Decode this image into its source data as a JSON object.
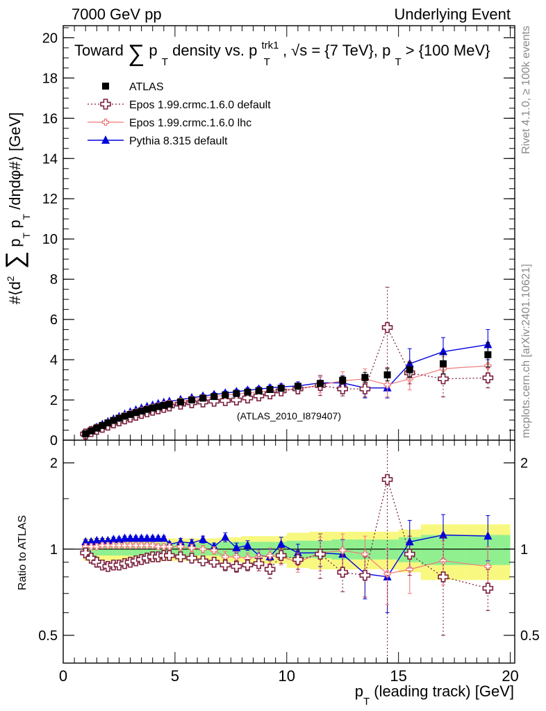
{
  "header": {
    "energy_label": "7000 GeV pp",
    "process_label": "Underlying Event"
  },
  "side_labels": {
    "rivet": "Rivet 4.1.0, ≥ 100k events",
    "mcplots": "mcplots.cern.ch [arXiv:2401.10621]"
  },
  "chart_data": [
    {
      "type": "scatter",
      "panel": "main",
      "title": "Toward ∑ pT density vs. pT^trk1, √s = {7 TeV}, pT > {100 MeV}",
      "ylabel": "#⟨d² ∑ pT pT /dηdφ#⟩ [GeV]",
      "xlabel": "pT (leading track) [GeV]",
      "xlim": [
        0,
        20.2
      ],
      "ylim": [
        0,
        20.6
      ],
      "xticks": [
        0,
        5,
        10,
        15,
        20
      ],
      "yticks": [
        0,
        2,
        4,
        6,
        8,
        10,
        12,
        14,
        16,
        18,
        20
      ],
      "watermark": "(ATLAS_2010_I879407)",
      "legend_position": "top-left",
      "x": [
        1.0,
        1.25,
        1.5,
        1.75,
        2.0,
        2.25,
        2.5,
        2.75,
        3.0,
        3.25,
        3.5,
        3.75,
        4.0,
        4.25,
        4.5,
        4.75,
        5.25,
        5.75,
        6.25,
        6.75,
        7.25,
        7.75,
        8.25,
        8.75,
        9.25,
        9.75,
        10.5,
        11.5,
        12.5,
        13.5,
        14.5,
        15.5,
        17.0,
        19.0
      ],
      "series": [
        {
          "name": "ATLAS",
          "marker": "square",
          "color": "#000000",
          "values": [
            0.32,
            0.46,
            0.6,
            0.73,
            0.86,
            0.98,
            1.09,
            1.19,
            1.28,
            1.37,
            1.45,
            1.53,
            1.6,
            1.67,
            1.73,
            1.79,
            1.9,
            2.0,
            2.09,
            2.17,
            2.25,
            2.32,
            2.39,
            2.46,
            2.52,
            2.58,
            2.68,
            2.82,
            2.98,
            3.12,
            3.25,
            3.5,
            3.8,
            4.25
          ],
          "errors": [
            0.02,
            0.02,
            0.02,
            0.02,
            0.02,
            0.03,
            0.03,
            0.03,
            0.03,
            0.03,
            0.03,
            0.03,
            0.03,
            0.04,
            0.04,
            0.04,
            0.05,
            0.05,
            0.05,
            0.06,
            0.06,
            0.07,
            0.07,
            0.08,
            0.08,
            0.09,
            0.1,
            0.15,
            0.2,
            0.25,
            0.3,
            0.35,
            0.5,
            0.6
          ]
        },
        {
          "name": "Epos 1.99.crmc.1.6.0 default",
          "marker": "open-cross",
          "color": "#7a1f3d",
          "values": [
            0.31,
            0.43,
            0.54,
            0.64,
            0.75,
            0.86,
            0.96,
            1.06,
            1.15,
            1.24,
            1.33,
            1.41,
            1.49,
            1.56,
            1.63,
            1.7,
            1.79,
            1.86,
            1.9,
            1.94,
            1.97,
            2.0,
            2.1,
            2.2,
            2.3,
            2.45,
            2.55,
            2.72,
            2.55,
            2.55,
            5.6,
            3.35,
            3.05,
            3.1
          ],
          "errors": [
            0.02,
            0.02,
            0.02,
            0.02,
            0.03,
            0.03,
            0.03,
            0.03,
            0.03,
            0.04,
            0.04,
            0.04,
            0.04,
            0.05,
            0.05,
            0.05,
            0.06,
            0.07,
            0.08,
            0.09,
            0.1,
            0.12,
            0.14,
            0.16,
            0.18,
            0.2,
            0.25,
            0.5,
            0.35,
            0.4,
            2.0,
            0.55,
            0.9,
            0.5
          ]
        },
        {
          "name": "Epos 1.99.crmc.1.6.0 lhc",
          "marker": "open-plus",
          "color": "#f07878",
          "values": [
            0.33,
            0.47,
            0.61,
            0.74,
            0.87,
            0.99,
            1.11,
            1.22,
            1.31,
            1.4,
            1.48,
            1.56,
            1.63,
            1.7,
            1.77,
            1.83,
            1.93,
            2.02,
            2.1,
            2.17,
            2.24,
            2.3,
            2.35,
            2.4,
            2.45,
            2.5,
            2.55,
            2.75,
            2.95,
            3.05,
            2.75,
            3.05,
            3.55,
            3.7
          ],
          "errors": [
            0.02,
            0.02,
            0.02,
            0.02,
            0.03,
            0.03,
            0.03,
            0.03,
            0.03,
            0.04,
            0.04,
            0.04,
            0.04,
            0.05,
            0.05,
            0.05,
            0.06,
            0.07,
            0.08,
            0.09,
            0.1,
            0.12,
            0.14,
            0.16,
            0.18,
            0.2,
            0.22,
            0.4,
            0.45,
            0.5,
            0.6,
            0.55,
            0.6,
            0.6
          ]
        },
        {
          "name": "Pythia 8.315 default",
          "marker": "triangle",
          "color": "#0000dd",
          "values": [
            0.34,
            0.49,
            0.64,
            0.78,
            0.92,
            1.05,
            1.17,
            1.29,
            1.4,
            1.5,
            1.59,
            1.67,
            1.74,
            1.81,
            1.87,
            1.93,
            2.02,
            2.11,
            2.19,
            2.27,
            2.34,
            2.41,
            2.48,
            2.54,
            2.6,
            2.65,
            2.7,
            2.85,
            2.85,
            2.6,
            2.6,
            3.8,
            4.4,
            4.75
          ],
          "errors": [
            0.02,
            0.02,
            0.02,
            0.02,
            0.03,
            0.03,
            0.03,
            0.03,
            0.03,
            0.04,
            0.04,
            0.04,
            0.04,
            0.05,
            0.05,
            0.05,
            0.06,
            0.07,
            0.08,
            0.09,
            0.1,
            0.11,
            0.12,
            0.13,
            0.14,
            0.15,
            0.2,
            0.3,
            0.35,
            0.5,
            0.5,
            0.75,
            0.7,
            0.75
          ]
        }
      ]
    },
    {
      "type": "scatter",
      "panel": "ratio",
      "ylabel": "Ratio to ATLAS",
      "xlabel": "pT (leading track) [GeV]",
      "xlim": [
        0,
        20.2
      ],
      "ylim": [
        0.4,
        2.4
      ],
      "xticks": [
        0,
        5,
        10,
        15,
        20
      ],
      "yticks": [
        0.5,
        1,
        2
      ],
      "reference_line": 1,
      "x": [
        1.0,
        1.25,
        1.5,
        1.75,
        2.0,
        2.25,
        2.5,
        2.75,
        3.0,
        3.25,
        3.5,
        3.75,
        4.0,
        4.25,
        4.5,
        4.75,
        5.25,
        5.75,
        6.25,
        6.75,
        7.25,
        7.75,
        8.25,
        8.75,
        9.25,
        9.75,
        10.5,
        11.5,
        12.5,
        13.5,
        14.5,
        15.5,
        17.0,
        19.0
      ],
      "bands": {
        "x_edges": [
          0.9,
          1.1,
          1.4,
          1.6,
          1.9,
          2.1,
          2.4,
          2.6,
          2.9,
          3.1,
          3.4,
          3.6,
          3.9,
          4.1,
          4.4,
          4.6,
          5.0,
          5.5,
          6.0,
          6.5,
          7.0,
          7.5,
          8.0,
          8.5,
          9.0,
          9.5,
          10.0,
          11.0,
          12.0,
          13.0,
          14.0,
          15.0,
          16.0,
          18.0,
          20.0
        ],
        "inner_half_width": [
          0.05,
          0.05,
          0.05,
          0.05,
          0.05,
          0.05,
          0.05,
          0.05,
          0.05,
          0.05,
          0.05,
          0.05,
          0.05,
          0.05,
          0.05,
          0.05,
          0.05,
          0.05,
          0.05,
          0.05,
          0.06,
          0.06,
          0.06,
          0.06,
          0.06,
          0.06,
          0.07,
          0.07,
          0.08,
          0.08,
          0.08,
          0.1,
          0.12,
          0.12
        ],
        "outer_half_width": [
          0.09,
          0.09,
          0.09,
          0.09,
          0.09,
          0.09,
          0.09,
          0.09,
          0.09,
          0.09,
          0.09,
          0.09,
          0.09,
          0.09,
          0.09,
          0.09,
          0.09,
          0.09,
          0.09,
          0.09,
          0.1,
          0.1,
          0.11,
          0.11,
          0.11,
          0.11,
          0.14,
          0.15,
          0.15,
          0.15,
          0.15,
          0.17,
          0.22,
          0.22
        ],
        "inner_color": "#90f090",
        "outer_color": "#f8f880"
      },
      "series": [
        {
          "name": "Epos 1.99.crmc.1.6.0 default",
          "color": "#7a1f3d",
          "values": [
            0.97,
            0.93,
            0.9,
            0.88,
            0.87,
            0.88,
            0.88,
            0.89,
            0.9,
            0.91,
            0.92,
            0.93,
            0.94,
            0.94,
            0.95,
            0.95,
            0.94,
            0.93,
            0.91,
            0.9,
            0.88,
            0.87,
            0.88,
            0.89,
            0.85,
            0.95,
            0.92,
            0.96,
            0.83,
            0.81,
            1.75,
            0.96,
            0.8,
            0.73
          ],
          "errors": [
            0.02,
            0.02,
            0.02,
            0.02,
            0.02,
            0.02,
            0.02,
            0.02,
            0.02,
            0.02,
            0.02,
            0.02,
            0.02,
            0.02,
            0.02,
            0.02,
            0.03,
            0.03,
            0.03,
            0.03,
            0.04,
            0.04,
            0.04,
            0.05,
            0.06,
            0.06,
            0.07,
            0.17,
            0.12,
            0.13,
            1.5,
            0.15,
            0.3,
            0.12
          ]
        },
        {
          "name": "Epos 1.99.crmc.1.6.0 lhc",
          "color": "#f07878",
          "values": [
            1.02,
            1.02,
            1.02,
            1.03,
            1.03,
            1.03,
            1.03,
            1.03,
            1.03,
            1.03,
            1.03,
            1.03,
            1.03,
            1.02,
            1.02,
            1.02,
            1.02,
            1.01,
            1.0,
            0.99,
            0.94,
            0.94,
            0.93,
            0.94,
            0.95,
            0.94,
            0.9,
            0.97,
            0.99,
            0.96,
            0.82,
            0.85,
            0.91,
            0.87
          ],
          "errors": [
            0.02,
            0.02,
            0.02,
            0.02,
            0.02,
            0.02,
            0.02,
            0.02,
            0.02,
            0.02,
            0.02,
            0.02,
            0.02,
            0.02,
            0.02,
            0.02,
            0.03,
            0.03,
            0.03,
            0.03,
            0.04,
            0.04,
            0.04,
            0.05,
            0.06,
            0.06,
            0.07,
            0.13,
            0.14,
            0.15,
            0.18,
            0.15,
            0.16,
            0.15
          ]
        },
        {
          "name": "Pythia 8.315 default",
          "color": "#0000dd",
          "values": [
            1.06,
            1.06,
            1.07,
            1.07,
            1.07,
            1.08,
            1.08,
            1.09,
            1.09,
            1.09,
            1.09,
            1.09,
            1.09,
            1.09,
            1.09,
            1.04,
            1.06,
            1.05,
            1.08,
            1.02,
            1.1,
            1.01,
            1.03,
            0.95,
            0.94,
            1.04,
            0.97,
            0.97,
            0.96,
            0.82,
            0.8,
            1.06,
            1.12,
            1.11
          ],
          "errors": [
            0.02,
            0.02,
            0.02,
            0.02,
            0.02,
            0.02,
            0.02,
            0.02,
            0.02,
            0.02,
            0.02,
            0.02,
            0.02,
            0.02,
            0.02,
            0.02,
            0.03,
            0.03,
            0.03,
            0.03,
            0.04,
            0.04,
            0.04,
            0.05,
            0.06,
            0.06,
            0.07,
            0.1,
            0.12,
            0.15,
            0.2,
            0.2,
            0.2,
            0.2
          ]
        }
      ]
    }
  ]
}
